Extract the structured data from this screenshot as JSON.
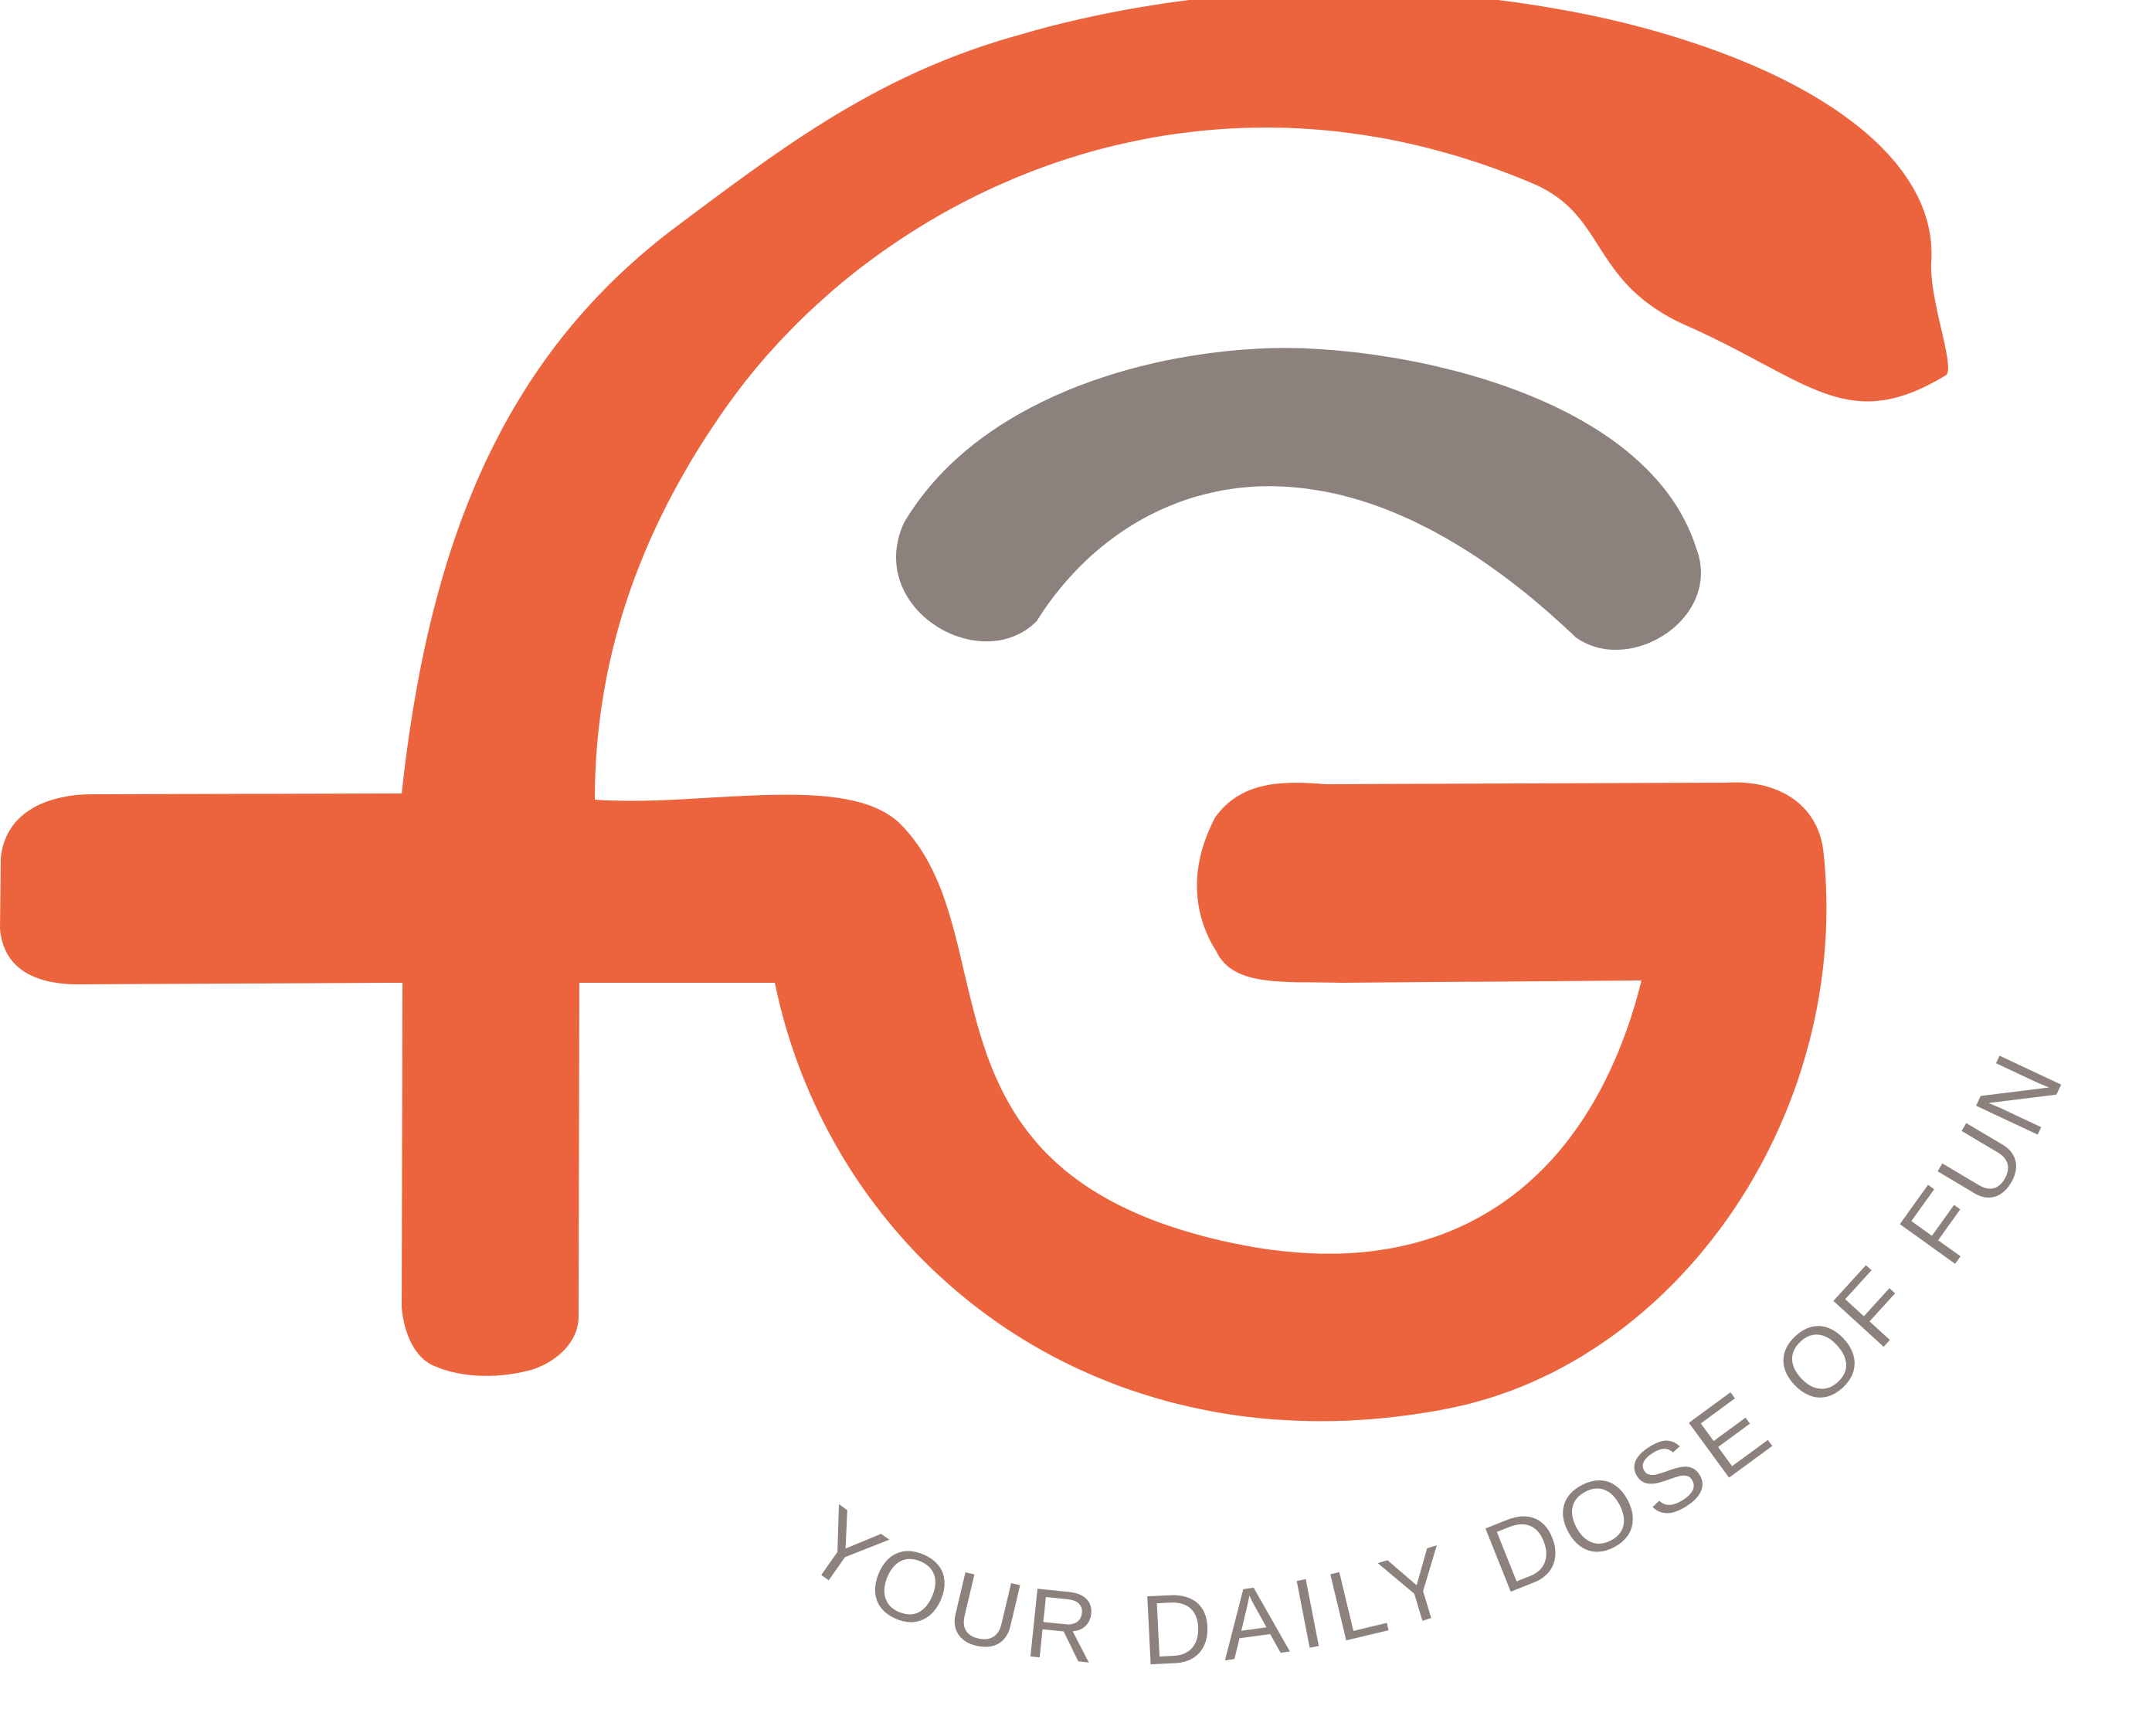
{
  "logo": {
    "monogram_letters": "fG",
    "tagline": "YOUR DAILY DOSE OF FUN"
  },
  "colors": {
    "primary": "#EB643D",
    "secondary": "#8C817C",
    "background": "#FFFFFF"
  }
}
